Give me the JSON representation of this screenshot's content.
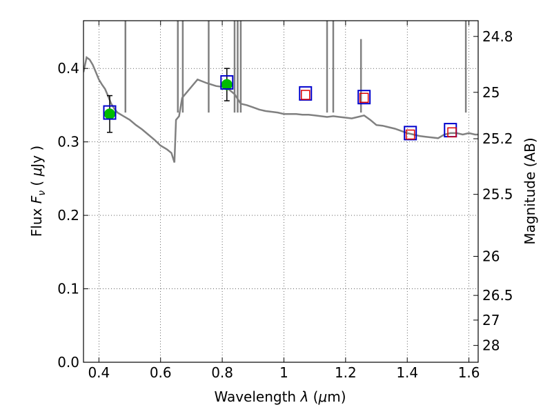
{
  "chart_data": {
    "type": "scatter",
    "xlabel": "Wavelength  λ (μm)",
    "ylabel": "Flux  F_ν  ( μJy )",
    "ylabel_right": "Magnitude (AB)",
    "xlim": [
      0.35,
      1.63
    ],
    "ylim": [
      0.0,
      0.465
    ],
    "grid": true,
    "x_ticks": [
      0.4,
      0.6,
      0.8,
      1.0,
      1.2,
      1.4,
      1.6
    ],
    "x_tick_labels": [
      "0.4",
      "0.6",
      "0.8",
      "1",
      "1.2",
      "1.4",
      "1.6"
    ],
    "y_ticks": [
      0.0,
      0.1,
      0.2,
      0.3,
      0.4
    ],
    "y_tick_labels": [
      "0.0",
      "0.1",
      "0.2",
      "0.3",
      "0.4"
    ],
    "right_ticks": [
      {
        "flux": 0.4436,
        "label": "24.8"
      },
      {
        "flux": 0.3675,
        "label": "25"
      },
      {
        "flux": 0.3043,
        "label": "25.2"
      },
      {
        "flux": 0.2286,
        "label": "25.5"
      },
      {
        "flux": 0.1442,
        "label": "26"
      },
      {
        "flux": 0.091,
        "label": "26.5"
      },
      {
        "flux": 0.0574,
        "label": "27"
      },
      {
        "flux": 0.0229,
        "label": "28"
      }
    ],
    "series": [
      {
        "style": "line",
        "color": "#808080",
        "x": [
          0.35,
          0.36,
          0.37,
          0.38,
          0.39,
          0.4,
          0.41,
          0.42,
          0.43,
          0.44,
          0.45,
          0.46,
          0.48,
          0.5,
          0.52,
          0.54,
          0.56,
          0.58,
          0.6,
          0.62,
          0.635,
          0.645,
          0.65,
          0.66,
          0.67,
          0.7,
          0.72,
          0.75,
          0.78,
          0.8,
          0.82,
          0.84,
          0.86,
          0.88,
          0.9,
          0.92,
          0.94,
          0.96,
          0.98,
          1.0,
          1.02,
          1.04,
          1.06,
          1.08,
          1.1,
          1.12,
          1.14,
          1.16,
          1.18,
          1.2,
          1.22,
          1.24,
          1.26,
          1.28,
          1.3,
          1.32,
          1.34,
          1.36,
          1.38,
          1.4,
          1.42,
          1.44,
          1.46,
          1.48,
          1.5,
          1.52,
          1.54,
          1.56,
          1.58,
          1.6,
          1.62,
          1.63
        ],
        "y": [
          0.395,
          0.415,
          0.412,
          0.405,
          0.395,
          0.385,
          0.378,
          0.372,
          0.362,
          0.352,
          0.345,
          0.34,
          0.335,
          0.33,
          0.323,
          0.317,
          0.31,
          0.303,
          0.295,
          0.29,
          0.285,
          0.272,
          0.33,
          0.335,
          0.36,
          0.375,
          0.385,
          0.38,
          0.376,
          0.375,
          0.372,
          0.365,
          0.352,
          0.35,
          0.347,
          0.344,
          0.342,
          0.341,
          0.34,
          0.338,
          0.338,
          0.338,
          0.337,
          0.337,
          0.336,
          0.335,
          0.334,
          0.335,
          0.334,
          0.333,
          0.332,
          0.334,
          0.336,
          0.33,
          0.323,
          0.322,
          0.32,
          0.318,
          0.315,
          0.312,
          0.31,
          0.308,
          0.307,
          0.306,
          0.305,
          0.31,
          0.312,
          0.312,
          0.31,
          0.312,
          0.31,
          0.31
        ]
      },
      {
        "style": "spikes",
        "color": "#808080",
        "x": [
          0.486,
          0.656,
          0.672,
          0.756,
          0.84,
          0.85,
          0.86,
          1.14,
          1.16,
          1.25,
          1.59
        ],
        "y": [
          0.6,
          0.6,
          0.6,
          0.6,
          0.6,
          0.6,
          0.6,
          0.6,
          0.6,
          0.44,
          0.6
        ]
      },
      {
        "name": "green-points",
        "style": "marker-circle",
        "color": "#00bb00",
        "x": [
          0.435,
          0.815
        ],
        "y": [
          0.338,
          0.378
        ],
        "yerr": [
          0.025,
          0.022
        ]
      },
      {
        "name": "blue-squares",
        "style": "marker-square-open",
        "color": "#0000cc",
        "x": [
          0.435,
          0.815,
          1.07,
          1.26,
          1.41,
          1.54
        ],
        "y": [
          0.34,
          0.381,
          0.366,
          0.361,
          0.312,
          0.316
        ]
      },
      {
        "name": "red-squares",
        "style": "marker-square-open-small",
        "color": "#dd0000",
        "x": [
          1.07,
          1.26,
          1.41,
          1.545
        ],
        "y": [
          0.364,
          0.36,
          0.31,
          0.313
        ]
      }
    ]
  }
}
